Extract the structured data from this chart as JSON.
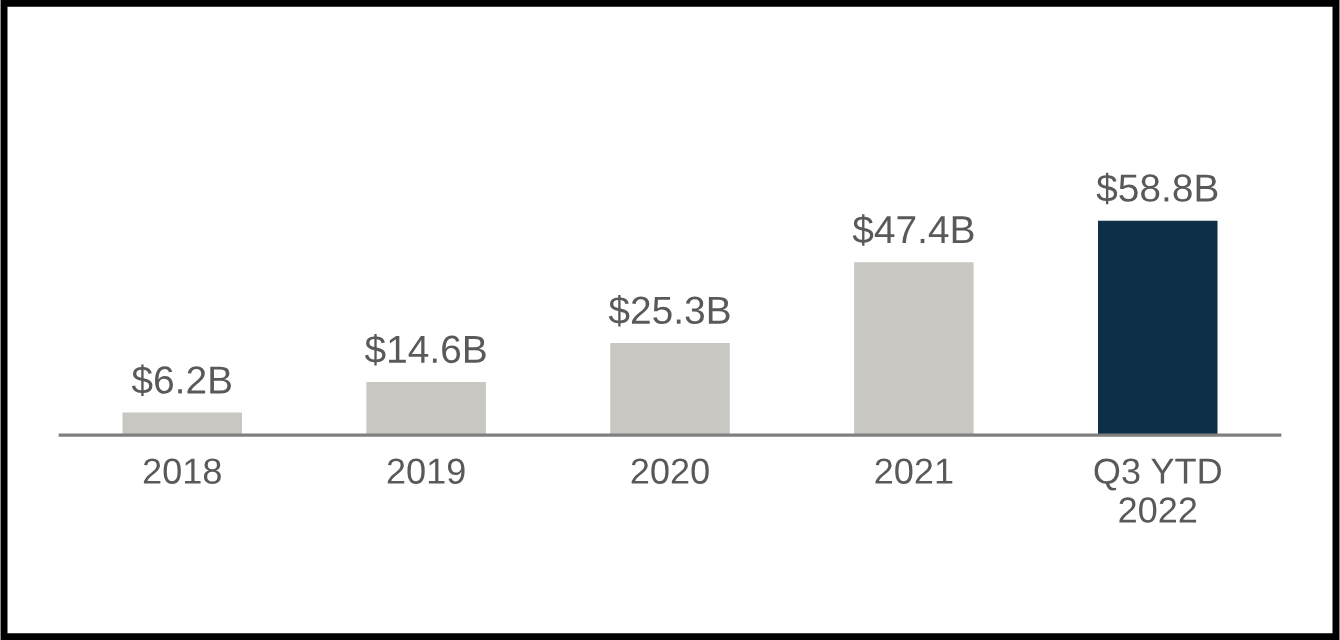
{
  "chart_data": {
    "type": "bar",
    "categories": [
      "2018",
      "2019",
      "2020",
      "2021",
      "Q3 YTD\n2022"
    ],
    "values": [
      6.2,
      14.6,
      25.3,
      47.4,
      58.8
    ],
    "colors": [
      "#c9c7c1",
      "#c9c7c1",
      "#c9c7c1",
      "#c9c7c1",
      "#0e2f48"
    ],
    "value_labels": [
      "$6.2B",
      "$14.6B",
      "$25.3B",
      "$47.4B",
      "$58.8B"
    ],
    "grid": false,
    "legend": false
  }
}
